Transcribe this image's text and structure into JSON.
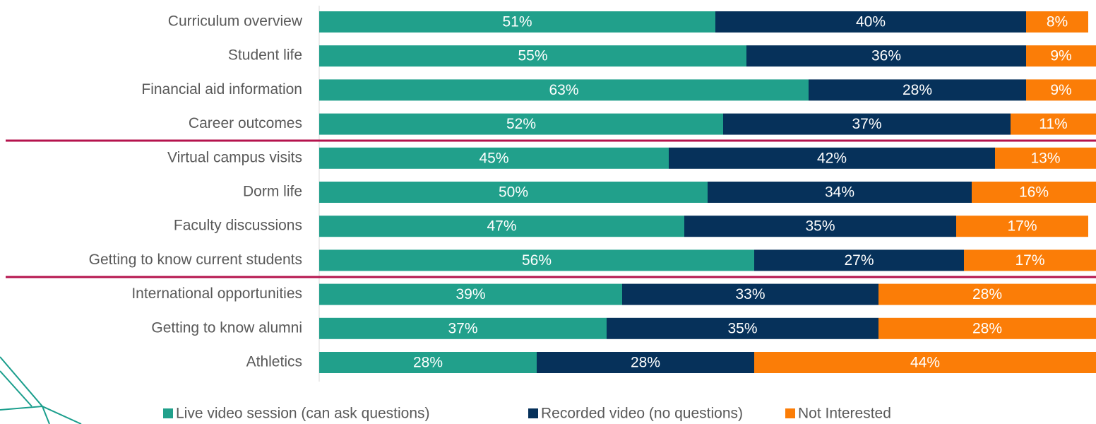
{
  "chart_data": {
    "type": "stacked-bar-horizontal",
    "categories": [
      "Curriculum overview",
      "Student life",
      "Financial aid information",
      "Career outcomes",
      "Virtual campus visits",
      "Dorm life",
      "Faculty discussions",
      "Getting to know current students",
      "International opportunities",
      "Getting to know alumni",
      "Athletics"
    ],
    "xlim": [
      0,
      100
    ],
    "series": [
      {
        "name": "Live video session (can ask questions)",
        "color": "#21a08b",
        "values": [
          51,
          55,
          63,
          52,
          45,
          50,
          47,
          56,
          39,
          37,
          28
        ],
        "value_labels": [
          "51%",
          "55%",
          "63%",
          "52%",
          "45%",
          "50%",
          "47%",
          "56%",
          "39%",
          "37%",
          "28%"
        ]
      },
      {
        "name": "Recorded video (no questions)",
        "color": "#06315a",
        "values": [
          40,
          36,
          28,
          37,
          42,
          34,
          35,
          27,
          33,
          35,
          28
        ],
        "value_labels": [
          "40%",
          "36%",
          "28%",
          "37%",
          "42%",
          "34%",
          "35%",
          "27%",
          "33%",
          "35%",
          "28%"
        ]
      },
      {
        "name": "Not Interested",
        "color": "#fb7d07",
        "values": [
          8,
          9,
          9,
          11,
          13,
          16,
          17,
          17,
          28,
          28,
          44
        ],
        "value_labels": [
          "8%",
          "9%",
          "9%",
          "11%",
          "13%",
          "16%",
          "17%",
          "17%",
          "28%",
          "28%",
          "44%"
        ]
      }
    ]
  }
}
